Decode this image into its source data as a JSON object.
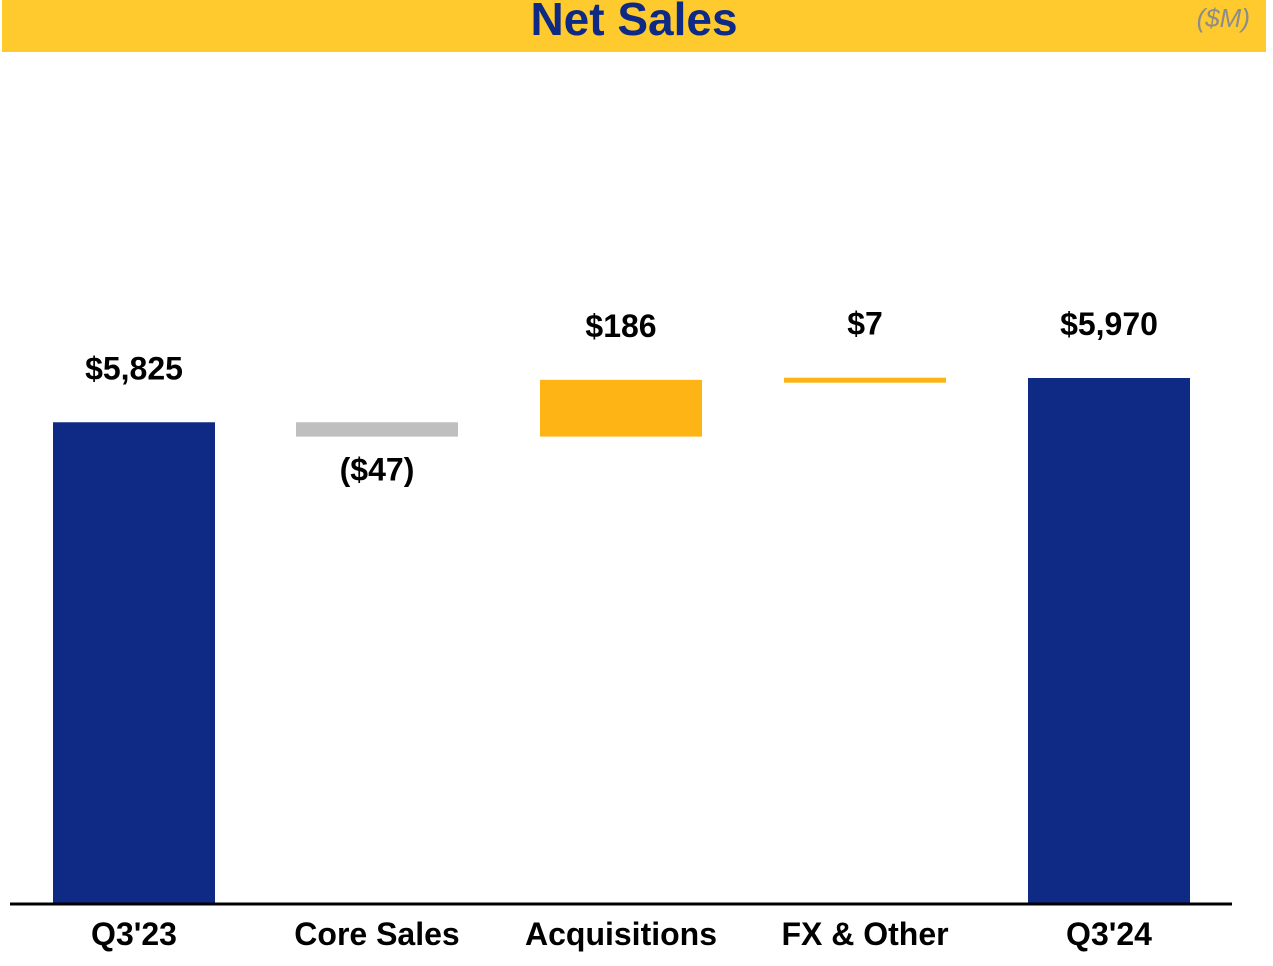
{
  "header": {
    "title": "Net Sales",
    "units": "($M)"
  },
  "colors": {
    "title_bar": "#FFCA2E",
    "title_text": "#0F2A85",
    "total_bar": "#0F2A85",
    "decrease_bar": "#BFBFBF",
    "increase_bar": "#FDB414"
  },
  "chart_data": {
    "type": "bar",
    "subtype": "waterfall",
    "categories": [
      "Q3'23",
      "Core Sales",
      "Acquisitions",
      "FX & Other",
      "Q3'24"
    ],
    "values": [
      5825,
      -47,
      186,
      7,
      5970
    ],
    "kinds": [
      "total",
      "delta",
      "delta",
      "delta",
      "total"
    ],
    "data_labels": [
      "$5,825",
      "($47)",
      "$186",
      "$7",
      "$5,970"
    ],
    "title": "Net Sales",
    "units": "($M)",
    "xlabel": "",
    "ylabel": "",
    "ylim": [
      4250,
      6250
    ],
    "grid": false,
    "legend": "none"
  }
}
